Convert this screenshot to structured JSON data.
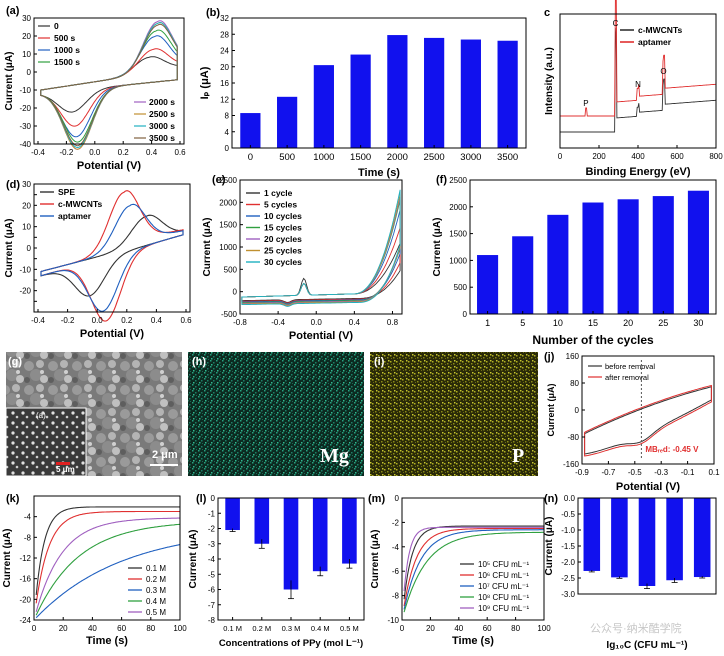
{
  "chart_data": [
    {
      "id": "a",
      "type": "line",
      "panel_label": "(a)",
      "xlabel": "Potential (V)",
      "ylabel": "Current (μA)",
      "xlim": [
        -0.4,
        0.6
      ],
      "ylim": [
        -40,
        30
      ],
      "xticks": [
        -0.4,
        -0.2,
        0.0,
        0.2,
        0.4,
        0.6
      ],
      "yticks": [
        -40,
        -30,
        -20,
        -10,
        0,
        10,
        20,
        30
      ],
      "xtick_labels": [
        "-0.4",
        "-0.2",
        "0.0",
        "0.2",
        "0.4",
        "0.6"
      ],
      "legend_left": [
        "0",
        "500 s",
        "1000 s",
        "1500 s"
      ],
      "legend_right": [
        "2000 s",
        "2500 s",
        "3000 s",
        "3500 s"
      ],
      "series": [
        {
          "name": "0",
          "color": "#333333",
          "peak_ox": 9,
          "peak_red": -12,
          "e_ox": 0.38,
          "e_red": -0.16
        },
        {
          "name": "500 s",
          "color": "#e03030",
          "peak_ox": 13,
          "peak_red": -20,
          "e_ox": 0.41,
          "e_red": -0.14
        },
        {
          "name": "1000 s",
          "color": "#2060c0",
          "peak_ox": 20,
          "peak_red": -26,
          "e_ox": 0.42,
          "e_red": -0.13
        },
        {
          "name": "1500 s",
          "color": "#30a040",
          "peak_ox": 23,
          "peak_red": -29,
          "e_ox": 0.43,
          "e_red": -0.12
        },
        {
          "name": "2000 s",
          "color": "#a060c0",
          "peak_ox": 28,
          "peak_red": -33,
          "e_ox": 0.44,
          "e_red": -0.12
        },
        {
          "name": "2500 s",
          "color": "#c09030",
          "peak_ox": 27,
          "peak_red": -33,
          "e_ox": 0.44,
          "e_red": -0.12
        },
        {
          "name": "3000 s",
          "color": "#20b0c0",
          "peak_ox": 27,
          "peak_red": -32,
          "e_ox": 0.44,
          "e_red": -0.12
        },
        {
          "name": "3500 s",
          "color": "#806040",
          "peak_ox": 26,
          "peak_red": -31,
          "e_ox": 0.44,
          "e_red": -0.12
        }
      ]
    },
    {
      "id": "b",
      "type": "bar",
      "panel_label": "(b)",
      "xlabel": "Time (s)",
      "ylabel": "Iₚ (μA)",
      "categories": [
        "0",
        "500",
        "1000",
        "1500",
        "2000",
        "2500",
        "3000",
        "3500"
      ],
      "values": [
        8.6,
        12.6,
        20.4,
        23.0,
        27.8,
        27.1,
        26.7,
        26.4
      ],
      "ylim": [
        0,
        32
      ],
      "yticks": [
        0,
        4,
        8,
        12,
        16,
        20,
        24,
        28,
        32
      ],
      "color": "#1111ee"
    },
    {
      "id": "c",
      "type": "line",
      "panel_label": "c",
      "xlabel": "Binding Energy (eV)",
      "ylabel": "Intensity (a.u.)",
      "xlim": [
        0,
        800
      ],
      "xticks": [
        0,
        200,
        400,
        600,
        800
      ],
      "legend": [
        "c-MWCNTs",
        "aptamer"
      ],
      "peak_labels": [
        "P",
        "C",
        "N",
        "O"
      ],
      "peak_positions": [
        133,
        285,
        400,
        531
      ],
      "series": [
        {
          "name": "c-MWCNTs",
          "color": "#333333"
        },
        {
          "name": "aptamer",
          "color": "#e03030"
        }
      ]
    },
    {
      "id": "d",
      "type": "line",
      "panel_label": "(d)",
      "xlabel": "Potential (V)",
      "ylabel": "Current (μA)",
      "xlim": [
        -0.4,
        0.6
      ],
      "ylim": [
        -30,
        30
      ],
      "xticks": [
        -0.4,
        -0.2,
        0.0,
        0.2,
        0.4,
        0.6
      ],
      "yticks": [
        -30,
        -25,
        -20,
        -15,
        -10,
        -5,
        0,
        5,
        10,
        15,
        20,
        25,
        30
      ],
      "xtick_labels": [
        "-0.4",
        "-0.2",
        "0.0",
        "0.2",
        "0.4",
        "0.6"
      ],
      "ytick_labels": [
        "",
        "",
        "-20",
        "",
        "-10",
        "",
        "0",
        "",
        "10",
        "",
        "20",
        "",
        "30"
      ],
      "legend": [
        "SPE",
        "c-MWCNTs",
        "aptamer"
      ],
      "series": [
        {
          "name": "SPE",
          "color": "#333333",
          "peak_ox": 13,
          "peak_red": -16,
          "e_ox": 0.33,
          "e_red": -0.05
        },
        {
          "name": "c-MWCNTs",
          "color": "#e03030",
          "peak_ox": 27,
          "peak_red": -30,
          "e_ox": 0.18,
          "e_red": 0.06
        },
        {
          "name": "aptamer",
          "color": "#2060c0",
          "peak_ox": 20,
          "peak_red": -25,
          "e_ox": 0.22,
          "e_red": 0.04
        }
      ]
    },
    {
      "id": "e",
      "type": "line",
      "panel_label": "(e)",
      "xlabel": "Potential (V)",
      "ylabel": "Current (μA)",
      "xlim": [
        -0.8,
        0.9
      ],
      "ylim": [
        -500,
        2500
      ],
      "xticks": [
        -0.8,
        -0.4,
        0.0,
        0.4,
        0.8
      ],
      "yticks": [
        -500,
        0,
        500,
        1000,
        1500,
        2000,
        2500
      ],
      "xtick_labels": [
        "-0.8",
        "-0.4",
        "0.0",
        "0.4",
        "0.8"
      ],
      "legend": [
        "1 cycle",
        "5 cycles",
        "10 cycles",
        "15 cycles",
        "20 cycles",
        "25 cycles",
        "30 cycles"
      ],
      "series": [
        {
          "name": "1 cycle",
          "color": "#333333",
          "end": 1100
        },
        {
          "name": "5 cycles",
          "color": "#e03030",
          "end": 1450
        },
        {
          "name": "10 cycles",
          "color": "#2060c0",
          "end": 1850
        },
        {
          "name": "15 cycles",
          "color": "#30a040",
          "end": 2080
        },
        {
          "name": "20 cycles",
          "color": "#a060c0",
          "end": 2140
        },
        {
          "name": "25 cycles",
          "color": "#c09030",
          "end": 2200
        },
        {
          "name": "30 cycles",
          "color": "#20b0c0",
          "end": 2300
        }
      ]
    },
    {
      "id": "f",
      "type": "bar",
      "panel_label": "(f)",
      "xlabel": "Number of the cycles",
      "ylabel": "Current (μA)",
      "categories": [
        "1",
        "5",
        "10",
        "15",
        "20",
        "25",
        "30"
      ],
      "values": [
        1100,
        1450,
        1850,
        2080,
        2140,
        2200,
        2300
      ],
      "ylim": [
        0,
        2500
      ],
      "yticks": [
        0,
        500,
        1000,
        1500,
        2000,
        2500
      ],
      "color": "#1111ee"
    },
    {
      "id": "j",
      "type": "line",
      "panel_label": "(j)",
      "xlabel": "Potential (V)",
      "ylabel": "Current (μA)",
      "xlim": [
        -0.9,
        0.1
      ],
      "ylim": [
        -160,
        160
      ],
      "xticks": [
        -0.9,
        -0.7,
        -0.5,
        -0.3,
        -0.1,
        0.1
      ],
      "yticks": [
        -160,
        -80,
        0,
        80,
        160
      ],
      "xtick_labels": [
        "-0.9",
        "-0.7",
        "-0.5",
        "-0.3",
        "-0.1",
        "0.1"
      ],
      "legend": [
        "before removal",
        "after removal"
      ],
      "annotation": "MBᵣₑd:  -0.45 V",
      "annotation_x": -0.45,
      "series": [
        {
          "name": "before removal",
          "color": "#333333"
        },
        {
          "name": "after removal",
          "color": "#e03030"
        }
      ]
    },
    {
      "id": "k",
      "type": "line",
      "panel_label": "(k)",
      "xlabel": "Time (s)",
      "ylabel": "Current (μA)",
      "xlim": [
        0,
        100
      ],
      "ylim": [
        -24,
        0
      ],
      "xticks": [
        0,
        20,
        40,
        60,
        80,
        100
      ],
      "yticks": [
        -24,
        -20,
        -16,
        -12,
        -8,
        -4
      ],
      "legend": [
        "0.1 M",
        "0.2 M",
        "0.3 M",
        "0.4 M",
        "0.5 M"
      ],
      "series": [
        {
          "name": "0.1 M",
          "color": "#333333",
          "plateau": -2.1,
          "tau": 6
        },
        {
          "name": "0.2 M",
          "color": "#e03030",
          "plateau": -3.0,
          "tau": 9
        },
        {
          "name": "0.3 M",
          "color": "#2060c0",
          "plateau": -6.0,
          "tau": 60
        },
        {
          "name": "0.4 M",
          "color": "#30a040",
          "plateau": -4.8,
          "tau": 30
        },
        {
          "name": "0.5 M",
          "color": "#a060c0",
          "plateau": -4.2,
          "tau": 18
        }
      ]
    },
    {
      "id": "l",
      "type": "bar",
      "panel_label": "(l)",
      "xlabel": "Concentrations of PPy (mol L⁻¹)",
      "ylabel": "Current (μA)",
      "categories": [
        "0.1 M",
        "0.2 M",
        "0.3 M",
        "0.4 M",
        "0.5 M"
      ],
      "values": [
        -2.1,
        -3.0,
        -6.0,
        -4.8,
        -4.3
      ],
      "errors": [
        0.1,
        0.3,
        0.6,
        0.3,
        0.3
      ],
      "ylim": [
        -8,
        0
      ],
      "yticks": [
        -8,
        -7,
        -6,
        -5,
        -4,
        -3,
        -2,
        -1,
        0
      ],
      "color": "#1111ee"
    },
    {
      "id": "m",
      "type": "line",
      "panel_label": "(m)",
      "xlabel": "Time (s)",
      "ylabel": "Current (μA)",
      "xlim": [
        0,
        100
      ],
      "ylim": [
        -10,
        0
      ],
      "xticks": [
        0,
        20,
        40,
        60,
        80,
        100
      ],
      "yticks": [
        -10,
        -8,
        -6,
        -4,
        -2,
        0
      ],
      "legend": [
        "10⁵ CFU mL⁻¹",
        "10⁶ CFU mL⁻¹",
        "10⁷ CFU mL⁻¹",
        "10⁸ CFU mL⁻¹",
        "10⁹ CFU mL⁻¹"
      ],
      "series": [
        {
          "name": "10⁵ CFU mL⁻¹",
          "color": "#333333",
          "plateau": -2.3,
          "tau": 6
        },
        {
          "name": "10⁶ CFU mL⁻¹",
          "color": "#e03030",
          "plateau": -2.5,
          "tau": 9
        },
        {
          "name": "10⁷ CFU mL⁻¹",
          "color": "#2060c0",
          "plateau": -2.6,
          "tau": 12
        },
        {
          "name": "10⁸ CFU mL⁻¹",
          "color": "#30a040",
          "plateau": -2.8,
          "tau": 16
        },
        {
          "name": "10⁹ CFU mL⁻¹",
          "color": "#a060c0",
          "plateau": -2.4,
          "tau": 4
        }
      ]
    },
    {
      "id": "n",
      "type": "bar",
      "panel_label": "(n)",
      "xlabel": "Ig₁₀C (CFU mL⁻¹)",
      "ylabel": "Current (μA)",
      "values": [
        -2.28,
        -2.48,
        -2.75,
        -2.57,
        -2.47
      ],
      "errors": [
        0.03,
        0.03,
        0.08,
        0.07,
        0.03
      ],
      "ylim": [
        -3.0,
        0.0
      ],
      "yticks": [
        -3.0,
        -2.5,
        -2.0,
        -1.5,
        -1.0,
        -0.5,
        0.0
      ],
      "ytick_labels": [
        "-3.0",
        "-2.5",
        "-2.0",
        "-1.5",
        "-1.0",
        "-0.5",
        "0.0"
      ],
      "color": "#1111ee"
    }
  ],
  "images": {
    "g": {
      "panel_label": "(g)",
      "scale_main": "2 μm",
      "inset_label": "(a)",
      "scale_inset": "5 μm"
    },
    "h": {
      "panel_label": "(h)",
      "element": "Mg"
    },
    "i": {
      "panel_label": "(i)",
      "element": "P"
    }
  },
  "watermark": "公众号·纳米酷学院"
}
